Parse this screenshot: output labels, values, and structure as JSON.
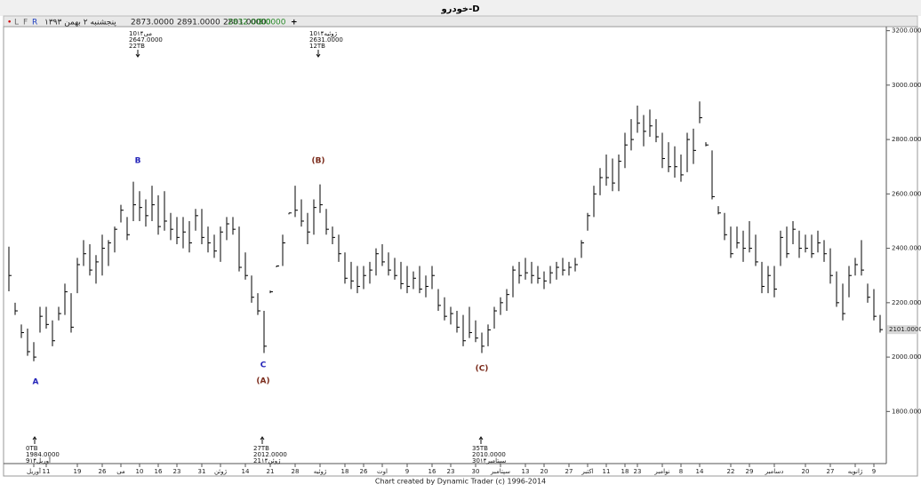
{
  "toolbar": {
    "buttons": [
      "•",
      "L",
      "F",
      "R"
    ],
    "date": "پنجشنبه ۲ بهمن ۱۳۹۳",
    "values": [
      "2873.0000",
      "2891.0000",
      "2801.0000",
      "2832.0000",
      "3.0000"
    ],
    "plus": "+"
  },
  "chart_data": {
    "type": "ohlc",
    "title": "خودرو-D",
    "footer": "Chart created by Dynamic Trader  (c) 1996-2014",
    "color": "#000000",
    "categories": [
      null,
      null,
      null,
      null,
      "آوريل",
      null,
      "11",
      null,
      null,
      null,
      null,
      "19",
      null,
      null,
      null,
      "26",
      null,
      null,
      "مى",
      null,
      null,
      "10",
      null,
      null,
      "16",
      null,
      null,
      "23",
      null,
      null,
      null,
      "31",
      null,
      null,
      "ژوئن",
      null,
      null,
      null,
      "14",
      null,
      null,
      null,
      "21",
      null,
      null,
      null,
      "28",
      null,
      null,
      null,
      "ژوئيه",
      null,
      null,
      null,
      "18",
      null,
      null,
      "26",
      null,
      null,
      "اوت",
      null,
      null,
      null,
      "9",
      null,
      null,
      null,
      "16",
      null,
      null,
      "23",
      null,
      null,
      null,
      "30",
      null,
      null,
      null,
      "سپتامبر",
      null,
      null,
      null,
      "13",
      null,
      null,
      "20",
      null,
      null,
      null,
      "27",
      null,
      null,
      "اکتبر",
      null,
      null,
      "11",
      null,
      null,
      "18",
      null,
      "23",
      null,
      null,
      null,
      "نوامبر",
      null,
      null,
      "8",
      null,
      null,
      "14",
      null,
      null,
      null,
      null,
      "22",
      null,
      null,
      "29",
      null,
      null,
      null,
      "دسامبر",
      null,
      null,
      null,
      null,
      "20",
      null,
      null,
      null,
      "27",
      null,
      null,
      null,
      "ژانويه",
      null,
      null,
      "9",
      null
    ],
    "high": [
      2406,
      2200,
      2120,
      2105,
      2055,
      2185,
      2185,
      2135,
      2185,
      2270,
      2235,
      2365,
      2430,
      2415,
      2375,
      2450,
      2430,
      2480,
      2560,
      2515,
      2645,
      2610,
      2580,
      2630,
      2595,
      2610,
      2530,
      2515,
      2515,
      2500,
      2545,
      2545,
      2480,
      2450,
      2480,
      2515,
      2515,
      2480,
      2385,
      2300,
      2235,
      2170,
      2245,
      2335,
      2450,
      2530,
      2630,
      2580,
      2530,
      2580,
      2635,
      2545,
      2480,
      2450,
      2385,
      2350,
      2335,
      2335,
      2350,
      2400,
      2415,
      2385,
      2365,
      2350,
      2335,
      2315,
      2335,
      2300,
      2335,
      2250,
      2220,
      2185,
      2170,
      2155,
      2185,
      2135,
      2090,
      2120,
      2185,
      2220,
      2250,
      2335,
      2350,
      2365,
      2350,
      2335,
      2315,
      2335,
      2350,
      2365,
      2350,
      2365,
      2430,
      2530,
      2630,
      2695,
      2745,
      2730,
      2745,
      2825,
      2875,
      2925,
      2890,
      2910,
      2875,
      2825,
      2790,
      2775,
      2745,
      2825,
      2840,
      2940,
      2790,
      2760,
      2555,
      2530,
      2480,
      2480,
      2465,
      2500,
      2450,
      2350,
      2335,
      2335,
      2465,
      2480,
      2500,
      2465,
      2450,
      2450,
      2465,
      2430,
      2400,
      2315,
      2270,
      2335,
      2365,
      2430,
      2270,
      2250,
      2155
    ],
    "low": [
      2242,
      2155,
      2070,
      2005,
      1985,
      2090,
      2105,
      2040,
      2135,
      2155,
      2090,
      2235,
      2335,
      2300,
      2270,
      2300,
      2335,
      2385,
      2495,
      2430,
      2500,
      2500,
      2480,
      2500,
      2450,
      2465,
      2430,
      2415,
      2400,
      2385,
      2465,
      2415,
      2385,
      2365,
      2350,
      2430,
      2450,
      2315,
      2285,
      2200,
      2155,
      2015,
      2235,
      2330,
      2335,
      2525,
      2515,
      2480,
      2415,
      2450,
      2530,
      2450,
      2415,
      2350,
      2270,
      2250,
      2235,
      2250,
      2270,
      2300,
      2335,
      2300,
      2285,
      2250,
      2235,
      2250,
      2235,
      2220,
      2250,
      2170,
      2135,
      2120,
      2090,
      2040,
      2070,
      2055,
      2015,
      2040,
      2105,
      2155,
      2170,
      2220,
      2270,
      2285,
      2270,
      2270,
      2250,
      2270,
      2285,
      2300,
      2300,
      2315,
      2365,
      2465,
      2515,
      2595,
      2630,
      2610,
      2610,
      2695,
      2760,
      2825,
      2775,
      2810,
      2790,
      2695,
      2680,
      2660,
      2645,
      2680,
      2710,
      2860,
      2775,
      2580,
      2525,
      2430,
      2365,
      2400,
      2350,
      2385,
      2335,
      2235,
      2235,
      2220,
      2335,
      2365,
      2415,
      2365,
      2385,
      2365,
      2385,
      2350,
      2270,
      2185,
      2135,
      2220,
      2300,
      2300,
      2200,
      2135,
      2090
    ],
    "close": [
      2300,
      2170,
      2090,
      2020,
      2000,
      2150,
      2120,
      2060,
      2160,
      2240,
      2110,
      2340,
      2380,
      2320,
      2350,
      2400,
      2420,
      2470,
      2540,
      2450,
      2560,
      2550,
      2520,
      2560,
      2480,
      2500,
      2470,
      2440,
      2460,
      2420,
      2520,
      2440,
      2420,
      2390,
      2460,
      2490,
      2470,
      2330,
      2300,
      2220,
      2170,
      2040,
      2240,
      2335,
      2420,
      2530,
      2540,
      2500,
      2460,
      2550,
      2560,
      2470,
      2440,
      2380,
      2290,
      2280,
      2260,
      2300,
      2320,
      2380,
      2350,
      2320,
      2300,
      2270,
      2260,
      2290,
      2250,
      2260,
      2300,
      2190,
      2150,
      2160,
      2110,
      2060,
      2090,
      2070,
      2040,
      2100,
      2170,
      2200,
      2230,
      2320,
      2300,
      2310,
      2300,
      2290,
      2280,
      2310,
      2330,
      2320,
      2330,
      2340,
      2420,
      2520,
      2600,
      2660,
      2660,
      2640,
      2720,
      2780,
      2800,
      2860,
      2830,
      2850,
      2810,
      2730,
      2700,
      2700,
      2670,
      2800,
      2760,
      2880,
      2780,
      2590,
      2530,
      2450,
      2380,
      2420,
      2400,
      2400,
      2350,
      2260,
      2300,
      2250,
      2440,
      2380,
      2470,
      2400,
      2400,
      2380,
      2420,
      2380,
      2300,
      2200,
      2160,
      2300,
      2340,
      2320,
      2220,
      2150,
      2101
    ],
    "ylim": [
      1615,
      3215
    ],
    "yticks": [
      {
        "value": 1800,
        "label": "1800.0000"
      },
      {
        "value": 2000,
        "label": "2000.0000"
      },
      {
        "value": 2200,
        "label": "2200.0000"
      },
      {
        "value": 2400,
        "label": "2400.0000"
      },
      {
        "value": 2600,
        "label": "2600.0000"
      },
      {
        "value": 2800,
        "label": "2800.0000"
      },
      {
        "value": 3000,
        "label": "3000.0000"
      },
      {
        "value": 3200,
        "label": "3200.0000"
      }
    ],
    "last_label": "2101.0000",
    "waves": [
      {
        "text": "A",
        "color": "#2323b8"
      },
      {
        "text": "B",
        "color": "#2323b8"
      },
      {
        "text": "C",
        "color": "#2323b8"
      },
      {
        "text": "(A)",
        "color": "#7a2a1a"
      },
      {
        "text": "(B)",
        "color": "#7a2a1a"
      },
      {
        "text": "(C)",
        "color": "#7a2a1a"
      }
    ],
    "pivots": [
      {
        "lines": [
          "10مى۱۴",
          "2647.0000",
          "22TB"
        ]
      },
      {
        "lines": [
          "10ژوئيه۱۴",
          "2631.0000",
          "12TB"
        ]
      },
      {
        "lines": [
          "0TB",
          "1984.0000",
          "9آوريل۱۴"
        ]
      },
      {
        "lines": [
          "27TB",
          "2012.0000",
          "21ژوئن۱۴"
        ]
      },
      {
        "lines": [
          "35TB",
          "2010.0000",
          "30سپتامبر۱۴"
        ]
      }
    ]
  }
}
